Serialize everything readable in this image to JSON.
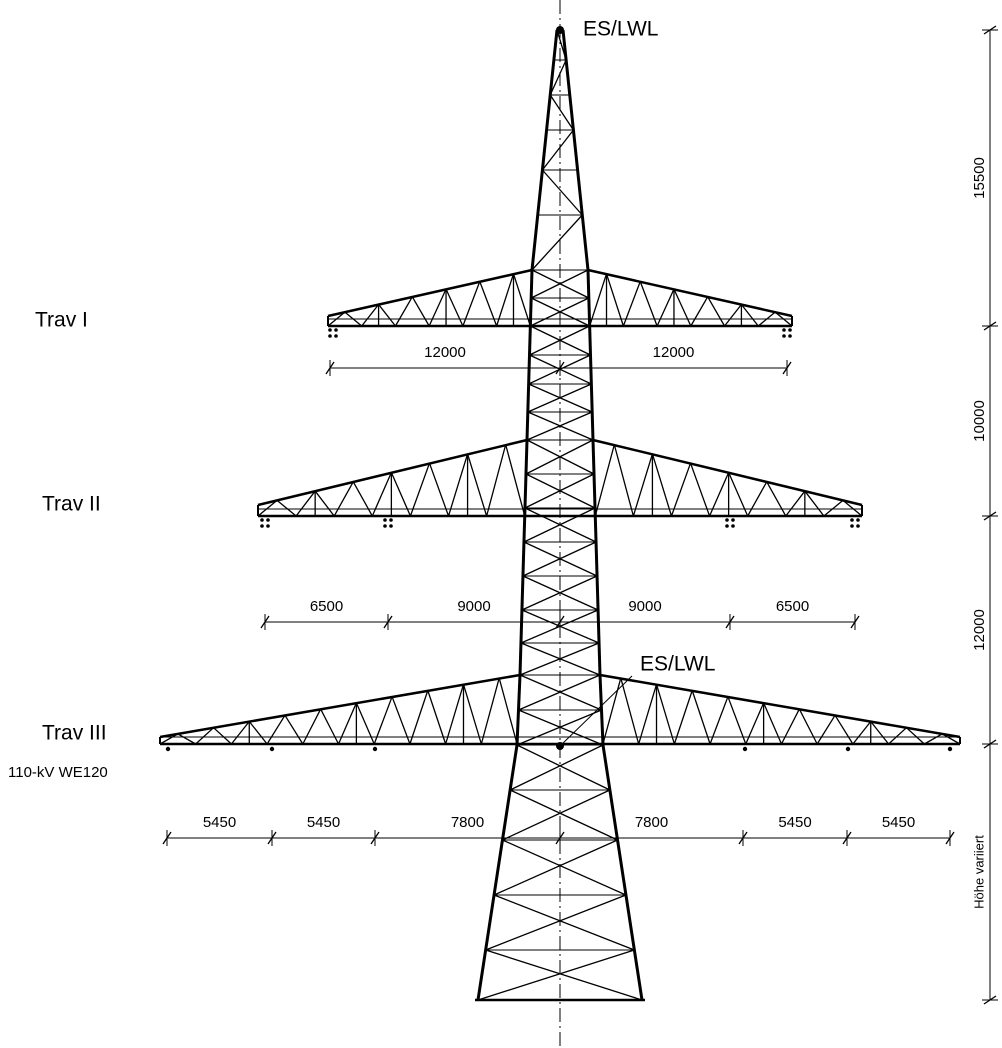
{
  "labels": {
    "top_wire": "ES/LWL",
    "mid_wire": "ES/LWL",
    "trav1": "Trav I",
    "trav2": "Trav II",
    "trav3": "Trav III",
    "line_note": "110-kV WE120"
  },
  "dimensions": {
    "trav1": [
      12000,
      12000
    ],
    "trav2": [
      6500,
      9000,
      9000,
      6500
    ],
    "trav3": [
      5450,
      5450,
      7800,
      7800,
      5450,
      5450
    ]
  },
  "heights": [
    15500,
    10000,
    12000
  ],
  "height_note": "Höhe variiert"
}
